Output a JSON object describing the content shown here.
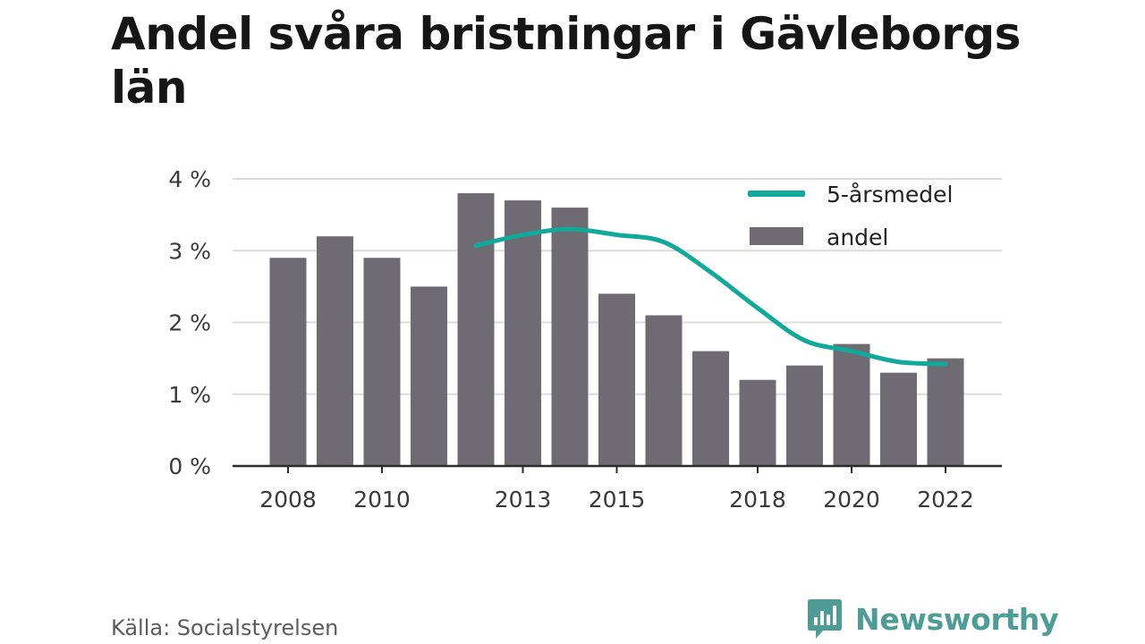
{
  "title": "Andel svåra bristningar i Gävleborgs län",
  "source": "Källa: Socialstyrelsen",
  "brand": {
    "name": "Newsworthy",
    "icon": "bar-chart-speech-bubble-icon",
    "color": "#4e9c96"
  },
  "chart_data": {
    "type": "bar",
    "title": "Andel svåra bristningar i Gävleborgs län",
    "categories": [
      "2008",
      "2009",
      "2010",
      "2011",
      "2012",
      "2013",
      "2014",
      "2015",
      "2016",
      "2017",
      "2018",
      "2019",
      "2020",
      "2021",
      "2022"
    ],
    "x_tick_labels": [
      "2008",
      "2010",
      "2013",
      "2015",
      "2018",
      "2020",
      "2022"
    ],
    "y_tick_labels": [
      "0 %",
      "1 %",
      "2 %",
      "3 %",
      "4 %"
    ],
    "ylim": [
      0,
      4
    ],
    "grid": true,
    "legend_position": "top-right",
    "series": [
      {
        "name": "andel",
        "type": "bar",
        "color": "#6e6c72",
        "values": [
          2.9,
          3.2,
          2.9,
          2.5,
          3.8,
          3.7,
          3.6,
          2.4,
          2.1,
          1.6,
          1.2,
          1.4,
          1.7,
          1.3,
          1.5
        ]
      },
      {
        "name": "5-årsmedel",
        "type": "line",
        "color": "#11a99a",
        "values": [
          null,
          null,
          null,
          null,
          3.07,
          3.22,
          3.3,
          3.22,
          3.12,
          2.7,
          2.2,
          1.75,
          1.6,
          1.45,
          1.42
        ]
      }
    ]
  }
}
